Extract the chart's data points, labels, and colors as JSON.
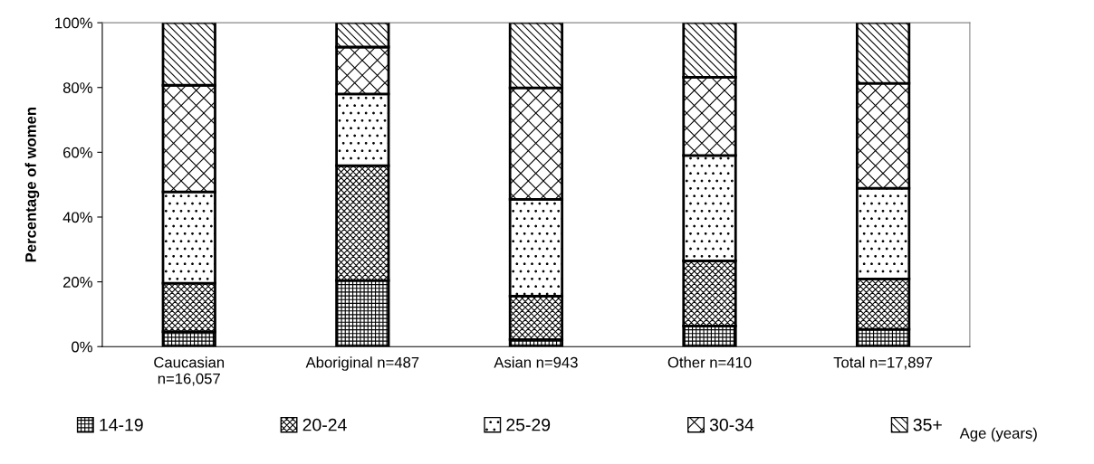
{
  "chart_data": {
    "type": "bar",
    "stacked": true,
    "ylabel": "Percentage of women",
    "legend_title": "Age (years)",
    "categories": [
      "Caucasian\nn=16,057",
      "Aboriginal n=487",
      "Asian n=943",
      "Other n=410",
      "Total n=17,897"
    ],
    "series": [
      {
        "name": "14-19",
        "color": "#000000",
        "values": [
          4.6,
          20.4,
          2.2,
          6.4,
          5.3
        ]
      },
      {
        "name": "20-24",
        "color": "#000000",
        "values": [
          15.0,
          35.5,
          13.4,
          20.1,
          15.6
        ]
      },
      {
        "name": "25-29",
        "color": "#000000",
        "values": [
          28.2,
          22.1,
          29.9,
          32.5,
          28.0
        ]
      },
      {
        "name": "30-34",
        "color": "#000000",
        "values": [
          32.9,
          14.5,
          34.4,
          24.2,
          32.4
        ]
      },
      {
        "name": "35+",
        "color": "#000000",
        "values": [
          19.3,
          7.5,
          20.1,
          16.8,
          18.7
        ]
      }
    ],
    "ylim": [
      0,
      100
    ],
    "yticks": [
      {
        "value": 0,
        "label": "0%"
      },
      {
        "value": 20,
        "label": "20%"
      },
      {
        "value": 40,
        "label": "40%"
      },
      {
        "value": 60,
        "label": "60%"
      },
      {
        "value": 80,
        "label": "80%"
      },
      {
        "value": 100,
        "label": "100%"
      }
    ],
    "grid": false,
    "legend": "bottom"
  }
}
